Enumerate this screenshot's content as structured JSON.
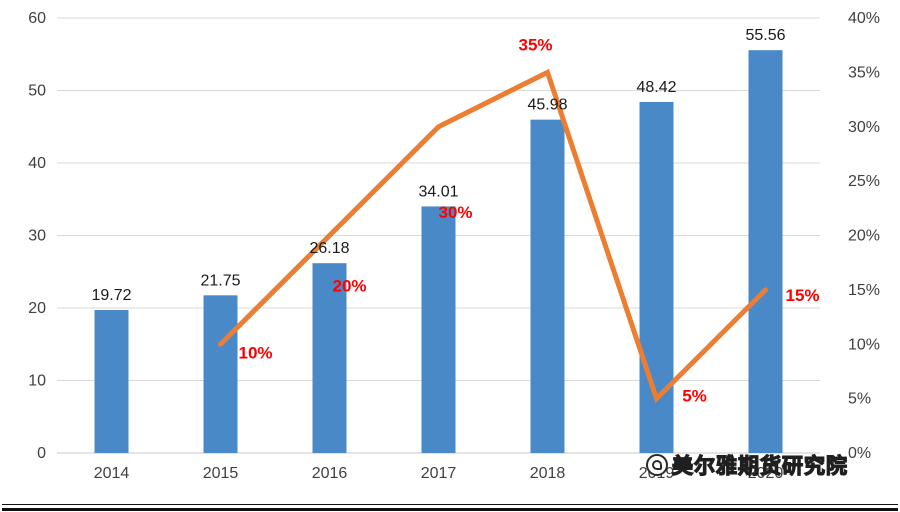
{
  "chart_data": {
    "type": "combo",
    "title": "",
    "categories": [
      "2014",
      "2015",
      "2016",
      "2017",
      "2018",
      "2019",
      "2020"
    ],
    "series": [
      {
        "name": "value-bars",
        "type": "bar",
        "axis": "left",
        "values": [
          19.72,
          21.75,
          26.18,
          34.01,
          45.98,
          48.42,
          55.56
        ],
        "labels": [
          "19.72",
          "21.75",
          "26.18",
          "34.01",
          "45.98",
          "48.42",
          "55.56"
        ],
        "color": "#4a89c8",
        "label_color": "#1a1a1a"
      },
      {
        "name": "growth-rate-line",
        "type": "line",
        "axis": "right",
        "values": [
          null,
          10,
          20,
          30,
          35,
          5,
          15
        ],
        "labels": [
          null,
          "10%",
          "20%",
          "30%",
          "35%",
          "5%",
          "15%"
        ],
        "color": "#ed7d31",
        "label_color": "#ff0000"
      }
    ],
    "left_axis": {
      "min": 0,
      "max": 60,
      "step": 10,
      "ticks": [
        "0",
        "10",
        "20",
        "30",
        "40",
        "50",
        "60"
      ]
    },
    "right_axis": {
      "min": 0,
      "max": 40,
      "step": 5,
      "ticks": [
        "0%",
        "5%",
        "10%",
        "15%",
        "20%",
        "25%",
        "30%",
        "35%",
        "40%"
      ]
    },
    "grid": true,
    "grid_color": "#d9d9d9",
    "axis_text_color": "#404040",
    "legend": "none"
  },
  "watermark": {
    "text": "美尔雅期货研究院",
    "icon": "logo-circle"
  }
}
